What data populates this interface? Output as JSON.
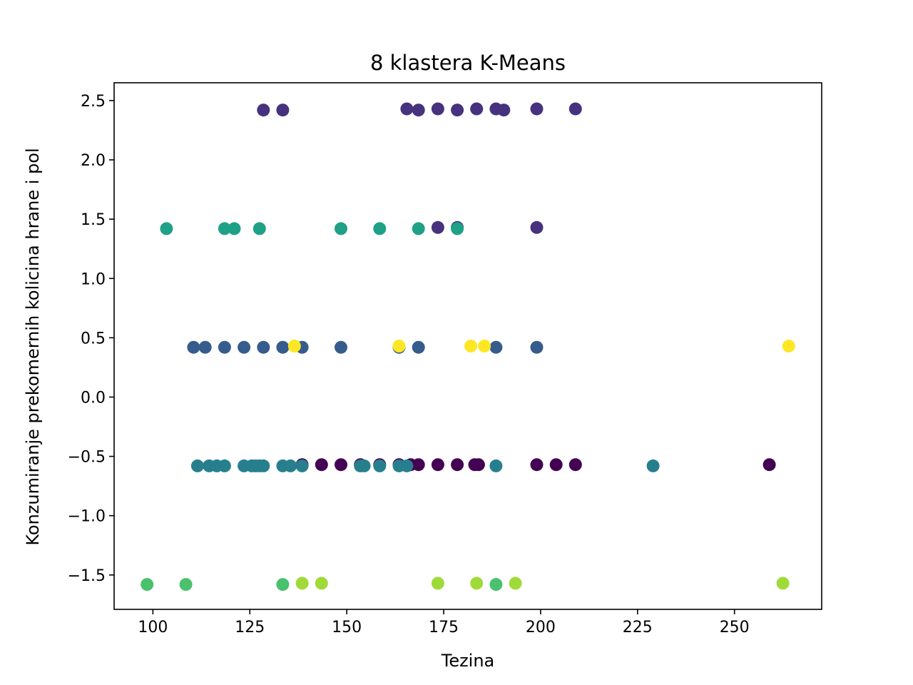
{
  "chart_data": {
    "type": "scatter",
    "title": "8 klastera K-Means",
    "xlabel": "Tezina",
    "ylabel": "Konzumiranje prekomernih kolicina hrane i pol",
    "xlim": [
      90,
      272.5
    ],
    "ylim": [
      -1.79,
      2.65
    ],
    "xticks": [
      100,
      125,
      150,
      175,
      200,
      225,
      250
    ],
    "yticks": [
      -1.5,
      -1.0,
      -0.5,
      0.0,
      0.5,
      1.0,
      1.5,
      2.0,
      2.5
    ],
    "xtick_labels": [
      "100",
      "125",
      "150",
      "175",
      "200",
      "225",
      "250"
    ],
    "ytick_labels": [
      "−1.5",
      "−1.0",
      "−0.5",
      "0.0",
      "0.5",
      "1.0",
      "1.5",
      "2.0",
      "2.5"
    ],
    "grid": false,
    "legend": false,
    "colormap": "viridis",
    "cluster_colors": [
      "#440154",
      "#46327e",
      "#365c8d",
      "#277f8e",
      "#1fa187",
      "#4ac16d",
      "#a0da39",
      "#fde725"
    ],
    "series": [
      {
        "cluster": 0,
        "color": "#440154",
        "x": [
          138.5,
          143.5,
          148.5,
          153.5,
          158.5,
          163.5,
          166.5,
          168.5,
          173.5,
          178.5,
          183.0,
          184.0,
          199.0,
          204.0,
          209.0,
          259.0
        ],
        "y": [
          -0.57,
          -0.57,
          -0.57,
          -0.57,
          -0.57,
          -0.57,
          -0.57,
          -0.57,
          -0.57,
          -0.57,
          -0.57,
          -0.57,
          -0.57,
          -0.57,
          -0.57,
          -0.57
        ]
      },
      {
        "cluster": 1,
        "color": "#46327e",
        "x": [
          128.5,
          133.5,
          165.5,
          168.5,
          173.5,
          178.5,
          183.5,
          188.5,
          190.5,
          199.0,
          209.0,
          173.5,
          178.5,
          199.0
        ],
        "y": [
          2.42,
          2.42,
          2.43,
          2.42,
          2.43,
          2.42,
          2.43,
          2.43,
          2.42,
          2.43,
          2.43,
          1.43,
          1.43,
          1.43
        ]
      },
      {
        "cluster": 2,
        "color": "#365c8d",
        "x": [
          110.5,
          113.5,
          118.5,
          123.5,
          128.5,
          133.5,
          138.5,
          148.5,
          163.5,
          168.5,
          188.5,
          199.0
        ],
        "y": [
          0.42,
          0.42,
          0.42,
          0.42,
          0.42,
          0.42,
          0.42,
          0.42,
          0.42,
          0.42,
          0.42,
          0.42
        ]
      },
      {
        "cluster": 3,
        "color": "#277f8e",
        "x": [
          111.5,
          114.5,
          116.5,
          118.5,
          123.5,
          125.5,
          126.5,
          127.5,
          128.5,
          133.5,
          135.5,
          138.5,
          153.5,
          154.5,
          158.5,
          163.5,
          165.5,
          188.5,
          229.0
        ],
        "y": [
          -0.58,
          -0.58,
          -0.58,
          -0.58,
          -0.58,
          -0.58,
          -0.58,
          -0.58,
          -0.58,
          -0.58,
          -0.58,
          -0.58,
          -0.58,
          -0.58,
          -0.58,
          -0.58,
          -0.58,
          -0.58,
          -0.58
        ]
      },
      {
        "cluster": 4,
        "color": "#1fa187",
        "x": [
          103.5,
          118.5,
          121.0,
          127.5,
          148.5,
          158.5,
          168.5,
          178.5
        ],
        "y": [
          1.42,
          1.42,
          1.42,
          1.42,
          1.42,
          1.42,
          1.42,
          1.42
        ]
      },
      {
        "cluster": 5,
        "color": "#4ac16d",
        "x": [
          98.5,
          108.5,
          133.5,
          188.5
        ],
        "y": [
          -1.58,
          -1.58,
          -1.58,
          -1.58
        ]
      },
      {
        "cluster": 6,
        "color": "#a0da39",
        "x": [
          138.5,
          143.5,
          173.5,
          183.5,
          193.5,
          262.5
        ],
        "y": [
          -1.57,
          -1.57,
          -1.57,
          -1.57,
          -1.57,
          -1.57
        ]
      },
      {
        "cluster": 7,
        "color": "#fde725",
        "x": [
          136.5,
          163.5,
          182.0,
          185.5,
          264.0
        ],
        "y": [
          0.43,
          0.43,
          0.43,
          0.43,
          0.43
        ]
      }
    ]
  }
}
